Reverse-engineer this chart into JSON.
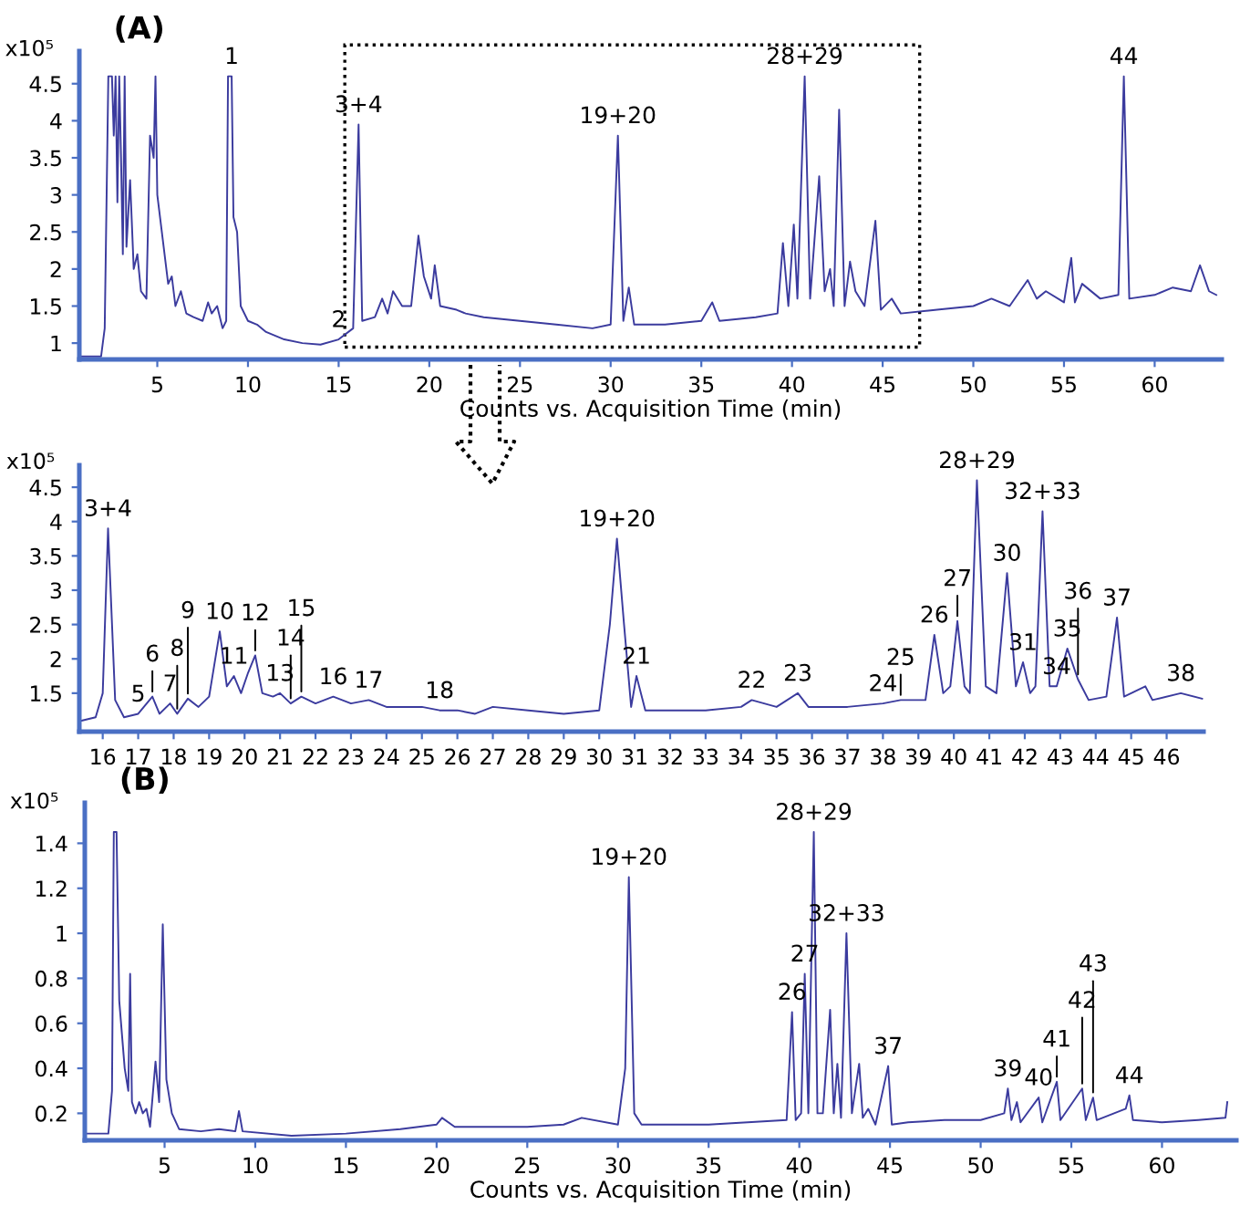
{
  "chart_data": [
    {
      "type": "line",
      "title": "(A)",
      "xlabel": "Counts vs. Acquisition Time (min)",
      "xlim": [
        0.7,
        63.7
      ],
      "xticks": [
        5,
        10,
        15,
        20,
        25,
        30,
        35,
        40,
        45,
        50,
        55,
        60
      ],
      "ylim": [
        0.78,
        4.94
      ],
      "yticks": [
        1,
        1.5,
        2,
        2.5,
        3,
        3.5,
        4,
        4.5
      ],
      "grid": false,
      "legend": false,
      "series": [
        {
          "color": "#3b3b9e",
          "x": [
            0.7,
            1.9,
            2.1,
            2.3,
            2.5,
            2.6,
            2.7,
            2.8,
            2.9,
            3.0,
            3.1,
            3.2,
            3.3,
            3.5,
            3.7,
            3.9,
            4.1,
            4.4,
            4.6,
            4.8,
            4.9,
            5.0,
            5.3,
            5.6,
            5.8,
            6.0,
            6.3,
            6.6,
            7.0,
            7.5,
            7.8,
            8.0,
            8.3,
            8.6,
            8.8,
            8.9,
            9.1,
            9.2,
            9.4,
            9.6,
            10,
            10.5,
            11,
            12,
            13,
            14,
            15,
            15.8,
            16.1,
            16.3,
            17,
            17.4,
            17.7,
            18,
            18.5,
            19,
            19.4,
            19.7,
            20.1,
            20.3,
            20.6,
            21.5,
            22,
            23,
            25,
            27,
            29,
            30,
            30.4,
            30.7,
            31,
            31.3,
            33,
            35,
            35.6,
            36,
            38,
            39.2,
            39.5,
            39.8,
            40.1,
            40.3,
            40.7,
            41,
            41.5,
            41.8,
            42.1,
            42.3,
            42.6,
            42.9,
            43.2,
            43.5,
            44,
            44.6,
            44.9,
            45.5,
            46,
            48,
            50,
            51,
            52,
            53,
            53.5,
            54,
            55,
            55.4,
            55.6,
            56,
            57,
            58,
            58.3,
            58.6,
            60,
            61,
            62,
            62.5,
            63,
            63.4
          ],
          "values": [
            0.82,
            0.82,
            1.2,
            4.6,
            4.6,
            3.8,
            4.6,
            2.9,
            4.6,
            3.5,
            2.2,
            4.6,
            2.3,
            3.2,
            2.0,
            2.2,
            1.7,
            1.6,
            3.8,
            3.5,
            4.6,
            3.0,
            2.4,
            1.8,
            1.9,
            1.5,
            1.7,
            1.4,
            1.35,
            1.3,
            1.55,
            1.4,
            1.5,
            1.2,
            1.3,
            4.6,
            4.6,
            2.7,
            2.5,
            1.5,
            1.3,
            1.25,
            1.15,
            1.05,
            1.0,
            0.98,
            1.05,
            1.2,
            3.95,
            1.3,
            1.35,
            1.6,
            1.4,
            1.7,
            1.5,
            1.5,
            2.45,
            1.9,
            1.6,
            2.05,
            1.5,
            1.45,
            1.4,
            1.35,
            1.3,
            1.25,
            1.2,
            1.25,
            3.8,
            1.3,
            1.75,
            1.25,
            1.25,
            1.3,
            1.55,
            1.3,
            1.35,
            1.4,
            2.35,
            1.5,
            2.6,
            1.6,
            4.6,
            1.6,
            3.25,
            1.7,
            2.0,
            1.5,
            4.15,
            1.5,
            2.1,
            1.7,
            1.5,
            2.65,
            1.45,
            1.6,
            1.4,
            1.45,
            1.5,
            1.6,
            1.5,
            1.85,
            1.6,
            1.7,
            1.55,
            2.15,
            1.55,
            1.8,
            1.6,
            1.65,
            4.6,
            1.6,
            1.65,
            1.75,
            1.7,
            2.05,
            1.7,
            1.65
          ]
        }
      ],
      "annotations": [
        "x10⁵",
        {
          "text": "1",
          "x": 9.1,
          "y": 4.6
        },
        {
          "text": "2",
          "x": 15,
          "y": 1.05
        },
        {
          "text": "3+4",
          "x": 16.1,
          "y": 3.95
        },
        {
          "text": "19+20",
          "x": 30.4,
          "y": 3.8
        },
        {
          "text": "28+29",
          "x": 40.7,
          "y": 4.6
        },
        {
          "text": "44",
          "x": 58.3,
          "y": 4.6
        }
      ]
    },
    {
      "type": "line",
      "xlim": [
        15.34,
        47.04
      ],
      "xticks": [
        16,
        17,
        18,
        19,
        20,
        21,
        22,
        23,
        24,
        25,
        26,
        27,
        28,
        29,
        30,
        31,
        32,
        33,
        34,
        35,
        36,
        37,
        38,
        39,
        40,
        41,
        42,
        43,
        44,
        45,
        46
      ],
      "ylim": [
        0.94,
        4.82
      ],
      "yticks": [
        1.5,
        2,
        2.5,
        3,
        3.5,
        4,
        4.5
      ],
      "grid": false,
      "legend": false,
      "series": [
        {
          "color": "#3b3b9e",
          "x": [
            15.4,
            15.8,
            16.0,
            16.15,
            16.35,
            16.6,
            17,
            17.4,
            17.6,
            17.9,
            18.1,
            18.4,
            18.7,
            19,
            19.3,
            19.5,
            19.7,
            19.9,
            20.1,
            20.3,
            20.5,
            20.8,
            21.0,
            21.3,
            21.6,
            22,
            22.5,
            23,
            23.5,
            24,
            25,
            25.5,
            26,
            26.5,
            27,
            28,
            29,
            30,
            30.3,
            30.5,
            30.7,
            30.9,
            31.05,
            31.3,
            32,
            33,
            34,
            34.3,
            35,
            35.6,
            35.9,
            37,
            38,
            38.5,
            39.2,
            39.45,
            39.7,
            39.9,
            40.1,
            40.3,
            40.45,
            40.65,
            40.9,
            41.2,
            41.5,
            41.75,
            41.95,
            42.15,
            42.3,
            42.5,
            42.7,
            42.9,
            43.2,
            43.5,
            43.8,
            44.3,
            44.6,
            44.8,
            45.4,
            45.6,
            46.4,
            47
          ],
          "values": [
            1.1,
            1.15,
            1.5,
            3.9,
            1.4,
            1.15,
            1.2,
            1.45,
            1.2,
            1.35,
            1.2,
            1.42,
            1.3,
            1.45,
            2.4,
            1.6,
            1.75,
            1.5,
            1.8,
            2.05,
            1.5,
            1.45,
            1.5,
            1.35,
            1.45,
            1.35,
            1.45,
            1.35,
            1.4,
            1.3,
            1.3,
            1.25,
            1.25,
            1.2,
            1.3,
            1.25,
            1.2,
            1.25,
            2.5,
            3.75,
            2.5,
            1.3,
            1.75,
            1.25,
            1.25,
            1.25,
            1.3,
            1.4,
            1.3,
            1.5,
            1.3,
            1.3,
            1.35,
            1.4,
            1.4,
            2.35,
            1.5,
            1.6,
            2.55,
            1.6,
            1.5,
            4.6,
            1.6,
            1.5,
            3.25,
            1.6,
            1.95,
            1.5,
            1.6,
            4.15,
            1.6,
            1.6,
            2.15,
            1.7,
            1.4,
            1.45,
            2.6,
            1.45,
            1.6,
            1.4,
            1.5,
            1.42
          ]
        }
      ],
      "annotations": [
        "x10⁵",
        {
          "text": "3+4",
          "x": 16.15,
          "y": 3.9
        },
        {
          "text": "5",
          "x": 17,
          "y": 1.2
        },
        {
          "text": "6",
          "x": 17.4,
          "y": 1.45
        },
        {
          "text": "7",
          "x": 17.9,
          "y": 1.35
        },
        {
          "text": "8",
          "x": 18.1,
          "y": 1.2
        },
        {
          "text": "9",
          "x": 18.4,
          "y": 1.42
        },
        {
          "text": "10",
          "x": 19.3,
          "y": 2.4
        },
        {
          "text": "11",
          "x": 19.7,
          "y": 1.75
        },
        {
          "text": "12",
          "x": 20.3,
          "y": 2.05
        },
        {
          "text": "13",
          "x": 21.0,
          "y": 1.5
        },
        {
          "text": "14",
          "x": 21.3,
          "y": 1.35
        },
        {
          "text": "15",
          "x": 21.6,
          "y": 1.45
        },
        {
          "text": "16",
          "x": 22.5,
          "y": 1.45
        },
        {
          "text": "17",
          "x": 23.5,
          "y": 1.4
        },
        {
          "text": "18",
          "x": 25.5,
          "y": 1.25
        },
        {
          "text": "19+20",
          "x": 30.5,
          "y": 3.75
        },
        {
          "text": "21",
          "x": 31.05,
          "y": 1.75
        },
        {
          "text": "22",
          "x": 34.3,
          "y": 1.4
        },
        {
          "text": "23",
          "x": 35.6,
          "y": 1.5
        },
        {
          "text": "24",
          "x": 38,
          "y": 1.35
        },
        {
          "text": "25",
          "x": 38.5,
          "y": 1.4
        },
        {
          "text": "26",
          "x": 39.45,
          "y": 2.35
        },
        {
          "text": "27",
          "x": 40.1,
          "y": 2.55
        },
        {
          "text": "28+29",
          "x": 40.65,
          "y": 4.6
        },
        {
          "text": "30",
          "x": 41.5,
          "y": 3.25
        },
        {
          "text": "31",
          "x": 41.95,
          "y": 1.95
        },
        {
          "text": "32+33",
          "x": 42.5,
          "y": 4.15
        },
        {
          "text": "34",
          "x": 42.9,
          "y": 1.6
        },
        {
          "text": "35",
          "x": 43.2,
          "y": 2.15
        },
        {
          "text": "36",
          "x": 43.5,
          "y": 1.7
        },
        {
          "text": "37",
          "x": 44.6,
          "y": 2.6
        },
        {
          "text": "38",
          "x": 46.4,
          "y": 1.5
        }
      ]
    },
    {
      "type": "line",
      "title": "(B)",
      "xlabel": "Counts vs. Acquisition Time (min)",
      "xlim": [
        0.6,
        64.1
      ],
      "xticks": [
        5,
        10,
        15,
        20,
        25,
        30,
        35,
        40,
        45,
        50,
        55,
        60
      ],
      "ylim": [
        0.08,
        1.58
      ],
      "yticks": [
        0.2,
        0.4,
        0.6,
        0.8,
        1,
        1.2,
        1.4
      ],
      "grid": false,
      "legend": false,
      "series": [
        {
          "color": "#3b3b9e",
          "x": [
            0.6,
            1.9,
            2.1,
            2.2,
            2.35,
            2.5,
            2.8,
            3.0,
            3.1,
            3.2,
            3.4,
            3.6,
            3.8,
            4.0,
            4.2,
            4.5,
            4.7,
            4.9,
            5.1,
            5.4,
            5.8,
            7,
            8,
            8.9,
            9.1,
            9.3,
            12,
            15,
            18,
            20,
            20.3,
            21,
            25,
            27,
            28,
            30,
            30.4,
            30.6,
            30.9,
            31.3,
            35,
            39.3,
            39.6,
            39.8,
            40.1,
            40.3,
            40.5,
            40.8,
            41.0,
            41.3,
            41.7,
            41.9,
            42.1,
            42.3,
            42.6,
            42.9,
            43.3,
            43.5,
            43.8,
            44.2,
            44.9,
            45.1,
            46,
            48,
            50,
            51.3,
            51.5,
            51.7,
            52,
            52.2,
            53.2,
            53.4,
            54.2,
            54.4,
            55.6,
            55.8,
            56.2,
            56.4,
            58,
            58.2,
            58.4,
            60,
            62,
            63.5,
            63.6
          ],
          "values": [
            0.11,
            0.11,
            0.3,
            1.45,
            1.45,
            0.7,
            0.4,
            0.3,
            0.82,
            0.25,
            0.2,
            0.25,
            0.2,
            0.22,
            0.14,
            0.43,
            0.25,
            1.04,
            0.35,
            0.2,
            0.13,
            0.12,
            0.13,
            0.12,
            0.21,
            0.12,
            0.1,
            0.11,
            0.13,
            0.15,
            0.18,
            0.14,
            0.14,
            0.15,
            0.18,
            0.15,
            0.4,
            1.25,
            0.2,
            0.15,
            0.15,
            0.17,
            0.65,
            0.17,
            0.2,
            0.82,
            0.2,
            1.45,
            0.2,
            0.2,
            0.66,
            0.2,
            0.42,
            0.18,
            1.0,
            0.2,
            0.42,
            0.18,
            0.22,
            0.15,
            0.41,
            0.15,
            0.16,
            0.17,
            0.17,
            0.2,
            0.31,
            0.17,
            0.25,
            0.16,
            0.27,
            0.16,
            0.34,
            0.17,
            0.31,
            0.17,
            0.27,
            0.17,
            0.22,
            0.28,
            0.17,
            0.16,
            0.17,
            0.18,
            0.25
          ]
        }
      ],
      "annotations": [
        "x10⁵",
        {
          "text": "19+20",
          "x": 30.6,
          "y": 1.25
        },
        {
          "text": "28+29",
          "x": 40.8,
          "y": 1.45
        },
        {
          "text": "26",
          "x": 39.6,
          "y": 0.65
        },
        {
          "text": "27",
          "x": 40.3,
          "y": 0.82
        },
        {
          "text": "32+33",
          "x": 42.6,
          "y": 1.0
        },
        {
          "text": "37",
          "x": 44.9,
          "y": 0.41
        },
        {
          "text": "39",
          "x": 51.5,
          "y": 0.31
        },
        {
          "text": "40",
          "x": 53.2,
          "y": 0.27
        },
        {
          "text": "41",
          "x": 54.2,
          "y": 0.34
        },
        {
          "text": "42",
          "x": 55.6,
          "y": 0.31
        },
        {
          "text": "43",
          "x": 56.2,
          "y": 0.27
        },
        {
          "text": "44",
          "x": 58.2,
          "y": 0.28
        }
      ]
    }
  ]
}
